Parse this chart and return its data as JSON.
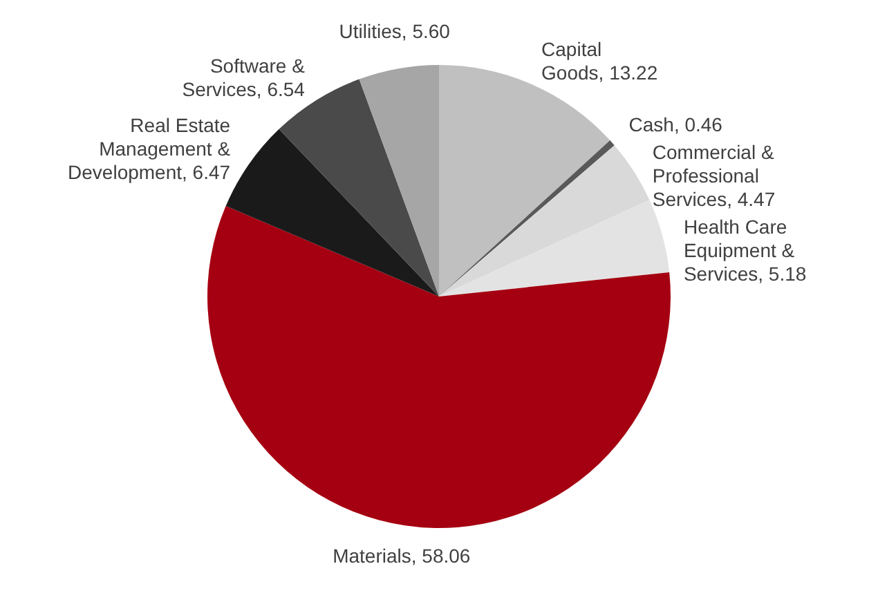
{
  "chart_data": {
    "type": "pie",
    "categories": [
      "Capital Goods",
      "Cash",
      "Commercial & Professional Services",
      "Health Care Equipment & Services",
      "Materials",
      "Real Estate Management & Development",
      "Software & Services",
      "Utilities"
    ],
    "values": [
      13.22,
      0.46,
      4.47,
      5.18,
      58.06,
      6.47,
      6.54,
      5.6
    ],
    "value_labels": [
      "13.22",
      "0.46",
      "4.47",
      "5.18",
      "58.06",
      "6.47",
      "6.54",
      "5.60"
    ],
    "colors": [
      "#c0c0c0",
      "#595959",
      "#d9d9d9",
      "#e3e3e3",
      "#a50011",
      "#1a1a1a",
      "#4a4a4a",
      "#a6a6a6"
    ],
    "legend": false
  }
}
